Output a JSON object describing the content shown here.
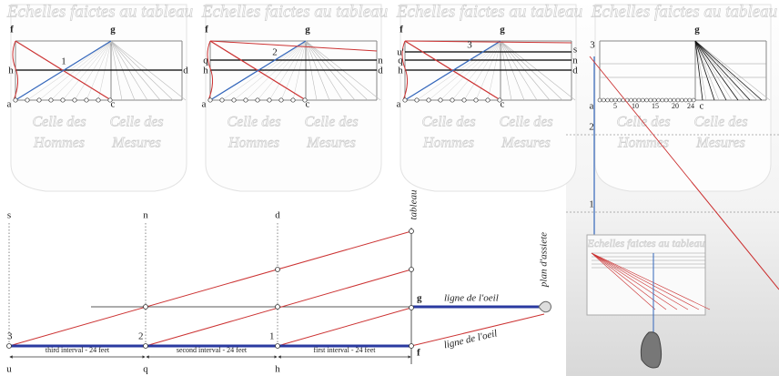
{
  "panels": [
    {
      "title": "Echelles faictes au tableau",
      "caption": [
        "Celle des",
        "Celle des",
        "Hommes",
        "Mesures"
      ],
      "labels": [
        "f",
        "g",
        "1",
        "h",
        "d",
        "a",
        "c"
      ]
    },
    {
      "title": "Echelles faictes au tableau",
      "caption": [
        "Celle des",
        "Celle des",
        "Hommes",
        "Mesures"
      ],
      "labels": [
        "f",
        "g",
        "2",
        "q",
        "h",
        "n",
        "d",
        "a",
        "c"
      ]
    },
    {
      "title": "Echelles faictes au tableau",
      "caption": [
        "Celle des",
        "Celle des",
        "Hommes",
        "Mesures"
      ],
      "labels": [
        "f",
        "g",
        "3",
        "u'",
        "q",
        "h",
        "s",
        "n",
        "d",
        "a",
        "c"
      ]
    },
    {
      "title": "Echelles faictes au tableau",
      "caption": [
        "Celle des",
        "Celle des",
        "Hommes",
        "Mesures"
      ],
      "labels": [
        "g",
        "a",
        "5",
        "10",
        "15",
        "20",
        "24",
        "c"
      ]
    }
  ],
  "side": {
    "labels": [
      "3",
      "2",
      "1"
    ],
    "box_title": "Echelles faictes au tableau"
  },
  "diagram": {
    "top_labels": [
      "s",
      "n",
      "d"
    ],
    "tableau": "tableau",
    "plan": "plan d'assiete",
    "eye_line_blue": "ligne de l'oeil",
    "eye_line_red": "ligne de l'oeil",
    "g": "g",
    "f": "f",
    "points": [
      "3",
      "2",
      "1"
    ],
    "intervals": [
      "third interval - 24 feet",
      "second interval - 24 feet",
      "first interval - 24 feet"
    ],
    "bottom_labels": [
      "u",
      "q",
      "h"
    ]
  }
}
